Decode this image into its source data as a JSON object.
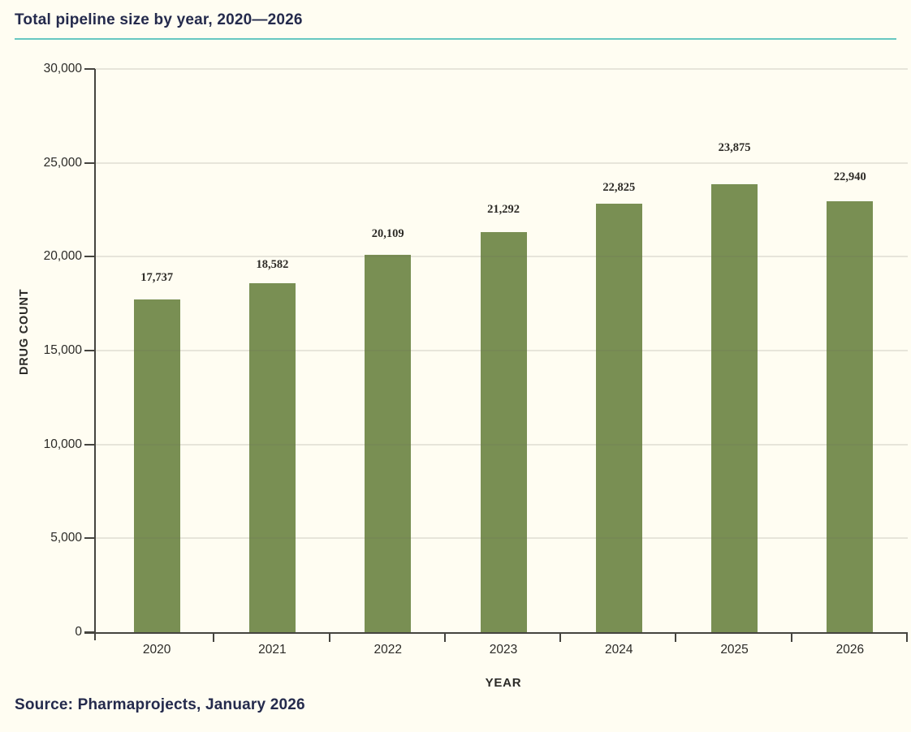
{
  "header": {
    "title": "Total pipeline size by year, 2020—2026"
  },
  "source": {
    "text": "Source: Pharmaprojects, January 2026"
  },
  "colors": {
    "background": "#FFFDF2",
    "bar": "#798F53",
    "title_navy": "#242A4C",
    "accent_teal": "#67C8C1",
    "axis": "#45443F",
    "gridline": "#E6E3DA",
    "chart_text": "#2B2A27"
  },
  "chart_data": {
    "type": "bar",
    "title": "Total pipeline size by year, 2020—2026",
    "categories": [
      "2020",
      "2021",
      "2022",
      "2023",
      "2024",
      "2025",
      "2026"
    ],
    "values": [
      17737,
      18582,
      20109,
      21292,
      22825,
      23875,
      22940
    ],
    "value_labels": [
      "17,737",
      "18,582",
      "20,109",
      "21,292",
      "22,825",
      "23,875",
      "22,940"
    ],
    "xlabel": "YEAR",
    "ylabel": "DRUG COUNT",
    "ylim": [
      0,
      30000
    ],
    "yticks": [
      0,
      5000,
      10000,
      15000,
      20000,
      25000,
      30000
    ],
    "ytick_labels": [
      "0",
      "5,000",
      "10,000",
      "15,000",
      "20,000",
      "25,000",
      "30,000"
    ],
    "grid": true,
    "legend": "none",
    "bar_color": "#798F53",
    "label_gaps": [
      18,
      14,
      17,
      19,
      11,
      36,
      21
    ]
  }
}
